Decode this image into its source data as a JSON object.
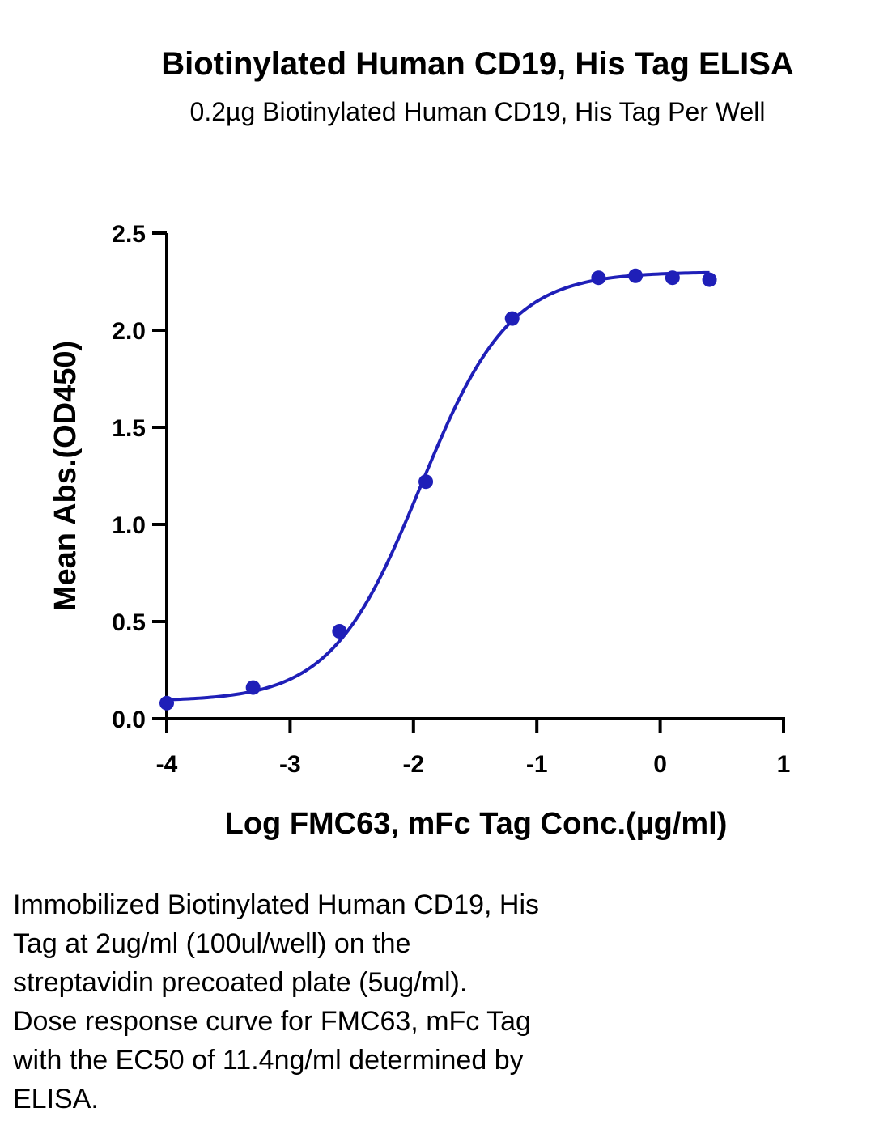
{
  "chart_data": {
    "type": "scatter",
    "title": "Biotinylated Human CD19, His Tag ELISA",
    "subtitle": "0.2µg Biotinylated Human CD19, His Tag Per Well",
    "xlabel": "Log FMC63, mFc Tag Conc.(µg/ml)",
    "ylabel": "Mean Abs.(OD450)",
    "xlim": [
      -4,
      1
    ],
    "ylim": [
      0,
      2.5
    ],
    "x_ticks": [
      -4,
      -3,
      -2,
      -1,
      0,
      1
    ],
    "x_tick_labels": [
      "-4",
      "-3",
      "-2",
      "-1",
      "0",
      "1"
    ],
    "y_ticks": [
      0.0,
      0.5,
      1.0,
      1.5,
      2.0,
      2.5
    ],
    "y_tick_labels": [
      "0.0",
      "0.5",
      "1.0",
      "1.5",
      "2.0",
      "2.5"
    ],
    "grid": false,
    "color": "#1f1fb8",
    "series": [
      {
        "x": [
          -4.0,
          -3.3,
          -2.6,
          -1.9,
          -1.2,
          -0.5,
          -0.2,
          0.1,
          0.4
        ],
        "y": [
          0.08,
          0.16,
          0.45,
          1.22,
          2.06,
          2.27,
          2.28,
          2.27,
          2.26
        ]
      }
    ],
    "fit": {
      "model": "4PL",
      "bottom": 0.09,
      "top": 2.3,
      "log_ec50": -1.943,
      "hill": 1.2
    }
  },
  "caption": "Immobilized Biotinylated Human CD19, His\nTag at 2ug/ml (100ul/well) on the\nstreptavidin precoated plate (5ug/ml).\nDose response curve for FMC63, mFc Tag\nwith the EC50 of 11.4ng/ml determined by\nELISA."
}
